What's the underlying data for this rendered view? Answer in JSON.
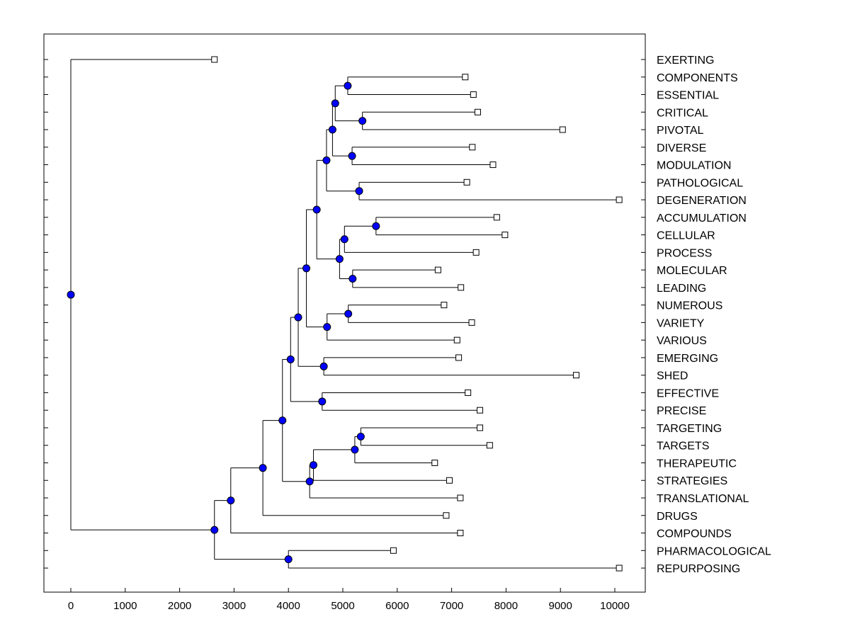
{
  "chart_data": {
    "type": "dendrogram",
    "title": "",
    "xlabel": "",
    "ylabel": "",
    "xlim": [
      -500,
      10600
    ],
    "x_ticks": [
      0,
      1000,
      2000,
      3000,
      4000,
      5000,
      6000,
      7000,
      8000,
      9000,
      10000
    ],
    "x_tick_labels": [
      "0",
      "1000",
      "2000",
      "3000",
      "4000",
      "5000",
      "6000",
      "7000",
      "8000",
      "9000",
      "10000"
    ],
    "grid": false,
    "colors": {
      "node": "#0000ff",
      "leaf_marker": "#ffffff",
      "line": "#000000"
    },
    "leaves": [
      {
        "label": "EXERTING",
        "x": 2640
      },
      {
        "label": "COMPONENTS",
        "x": 7250
      },
      {
        "label": "ESSENTIAL",
        "x": 7400
      },
      {
        "label": "CRITICAL",
        "x": 7480
      },
      {
        "label": "PIVOTAL",
        "x": 9040
      },
      {
        "label": "DIVERSE",
        "x": 7380
      },
      {
        "label": "MODULATION",
        "x": 7760
      },
      {
        "label": "PATHOLOGICAL",
        "x": 7280
      },
      {
        "label": "DEGENERATION",
        "x": 10080
      },
      {
        "label": "ACCUMULATION",
        "x": 7830
      },
      {
        "label": "CELLULAR",
        "x": 7980
      },
      {
        "label": "PROCESS",
        "x": 7450
      },
      {
        "label": "MOLECULAR",
        "x": 6750
      },
      {
        "label": "LEADING",
        "x": 7170
      },
      {
        "label": "NUMEROUS",
        "x": 6860
      },
      {
        "label": "VARIETY",
        "x": 7370
      },
      {
        "label": "VARIOUS",
        "x": 7100
      },
      {
        "label": "EMERGING",
        "x": 7130
      },
      {
        "label": "SHED",
        "x": 9290
      },
      {
        "label": "EFFECTIVE",
        "x": 7300
      },
      {
        "label": "PRECISE",
        "x": 7520
      },
      {
        "label": "TARGETING",
        "x": 7520
      },
      {
        "label": "TARGETS",
        "x": 7700
      },
      {
        "label": "THERAPEUTIC",
        "x": 6690
      },
      {
        "label": "STRATEGIES",
        "x": 6960
      },
      {
        "label": "TRANSLATIONAL",
        "x": 7160
      },
      {
        "label": "DRUGS",
        "x": 6900
      },
      {
        "label": "COMPOUNDS",
        "x": 7160
      },
      {
        "label": "PHARMACOLOGICAL",
        "x": 5930
      },
      {
        "label": "REPURPOSING",
        "x": 10080
      }
    ],
    "nodes": [
      {
        "id": "n1",
        "x": 5090,
        "children": [
          "COMPONENTS",
          "ESSENTIAL"
        ]
      },
      {
        "id": "n2",
        "x": 5360,
        "children": [
          "CRITICAL",
          "PIVOTAL"
        ]
      },
      {
        "id": "n3",
        "x": 4860,
        "children": [
          "n1",
          "n2"
        ]
      },
      {
        "id": "n4",
        "x": 5170,
        "children": [
          "DIVERSE",
          "MODULATION"
        ]
      },
      {
        "id": "n5",
        "x": 4810,
        "children": [
          "n3",
          "n4"
        ]
      },
      {
        "id": "n6",
        "x": 5300,
        "children": [
          "PATHOLOGICAL",
          "DEGENERATION"
        ]
      },
      {
        "id": "n7",
        "x": 4700,
        "children": [
          "n5",
          "n6"
        ]
      },
      {
        "id": "n8",
        "x": 5610,
        "children": [
          "ACCUMULATION",
          "CELLULAR"
        ]
      },
      {
        "id": "n9",
        "x": 5030,
        "children": [
          "n8",
          "PROCESS"
        ]
      },
      {
        "id": "n10",
        "x": 5180,
        "children": [
          "MOLECULAR",
          "LEADING"
        ]
      },
      {
        "id": "n11",
        "x": 4940,
        "children": [
          "n9",
          "n10"
        ]
      },
      {
        "id": "n12",
        "x": 4520,
        "children": [
          "n7",
          "n11"
        ]
      },
      {
        "id": "n13",
        "x": 5100,
        "children": [
          "NUMEROUS",
          "VARIETY"
        ]
      },
      {
        "id": "n14",
        "x": 4710,
        "children": [
          "n13",
          "VARIOUS"
        ]
      },
      {
        "id": "n15",
        "x": 4330,
        "children": [
          "n12",
          "n14"
        ]
      },
      {
        "id": "n16",
        "x": 4650,
        "children": [
          "EMERGING",
          "SHED"
        ]
      },
      {
        "id": "n17",
        "x": 4180,
        "children": [
          "n15",
          "n16"
        ]
      },
      {
        "id": "n18",
        "x": 4620,
        "children": [
          "EFFECTIVE",
          "PRECISE"
        ]
      },
      {
        "id": "n19",
        "x": 4040,
        "children": [
          "n17",
          "n18"
        ]
      },
      {
        "id": "n20",
        "x": 5330,
        "children": [
          "TARGETING",
          "TARGETS"
        ]
      },
      {
        "id": "n21",
        "x": 5220,
        "children": [
          "n20",
          "THERAPEUTIC"
        ]
      },
      {
        "id": "n22",
        "x": 4460,
        "children": [
          "n21",
          "STRATEGIES"
        ]
      },
      {
        "id": "n23",
        "x": 4390,
        "children": [
          "n22",
          "TRANSLATIONAL"
        ]
      },
      {
        "id": "n24",
        "x": 3890,
        "children": [
          "n19",
          "n23"
        ]
      },
      {
        "id": "n25",
        "x": 3530,
        "children": [
          "n24",
          "DRUGS"
        ]
      },
      {
        "id": "n26",
        "x": 2940,
        "children": [
          "n25",
          "COMPOUNDS"
        ]
      },
      {
        "id": "n27",
        "x": 4000,
        "children": [
          "PHARMACOLOGICAL",
          "REPURPOSING"
        ]
      },
      {
        "id": "n28",
        "x": 2640,
        "children": [
          "n26",
          "n27"
        ]
      },
      {
        "id": "root",
        "x": 0,
        "children": [
          "EXERTING",
          "n28"
        ]
      }
    ]
  }
}
